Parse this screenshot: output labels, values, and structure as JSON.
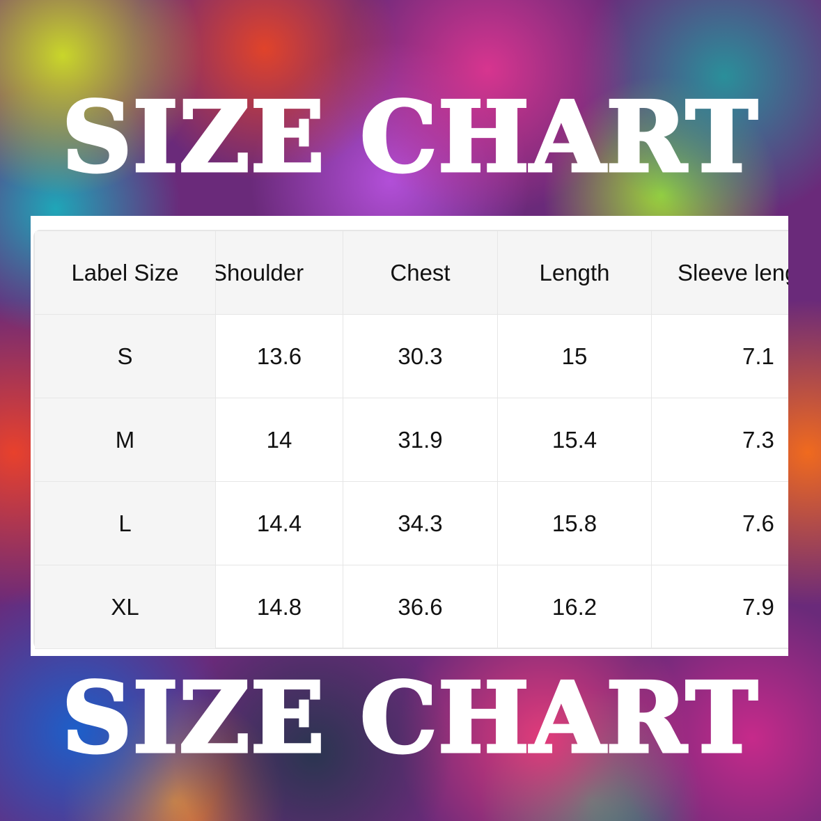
{
  "title_top": "SIZE CHART",
  "title_bottom": "SIZE CHART",
  "table": {
    "headers": [
      "Label Size",
      "Shoulder",
      "Chest",
      "Length",
      "Sleeve length"
    ],
    "rows": [
      [
        "S",
        "13.6",
        "30.3",
        "15",
        "7.1"
      ],
      [
        "M",
        "14",
        "31.9",
        "15.4",
        "7.3"
      ],
      [
        "L",
        "14.4",
        "34.3",
        "15.8",
        "7.6"
      ],
      [
        "XL",
        "14.8",
        "36.6",
        "16.2",
        "7.9"
      ]
    ]
  }
}
